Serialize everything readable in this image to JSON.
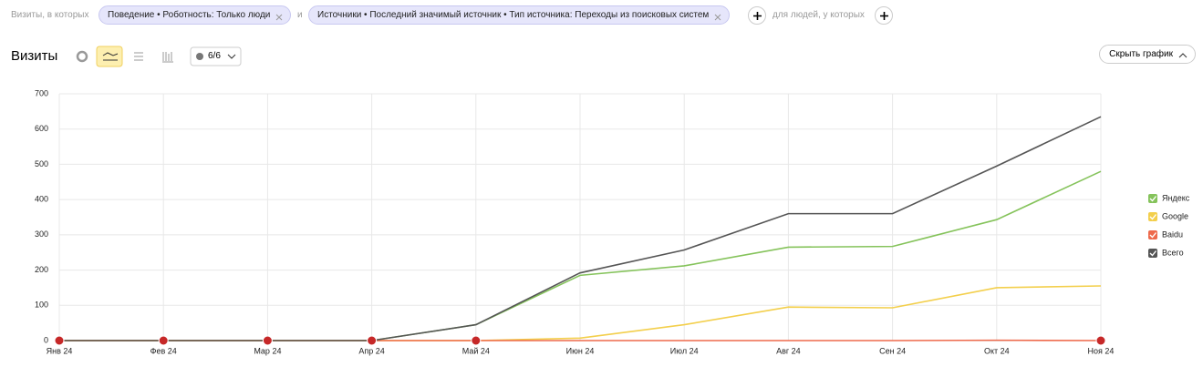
{
  "filters": {
    "prefix": "Визиты, в которых",
    "chip1": "Поведение • Роботность: Только люди",
    "joiner": "и",
    "chip2": "Источники • Последний значимый источник • Тип источника: Переходы из поисковых систем",
    "people": "для людей, у которых"
  },
  "toolbar": {
    "title": "Визиты",
    "series_count": "6/6",
    "hide_chart": "Скрыть график"
  },
  "chart_data": {
    "type": "line",
    "categories": [
      "Янв 24",
      "Фев 24",
      "Мар 24",
      "Апр 24",
      "Май 24",
      "Июн 24",
      "Июл 24",
      "Авг 24",
      "Сен 24",
      "Окт 24",
      "Ноя 24"
    ],
    "series": [
      {
        "name": "Яндекс",
        "color": "#85c35b",
        "values": [
          0,
          0,
          0,
          0,
          45,
          185,
          212,
          265,
          267,
          343,
          480
        ]
      },
      {
        "name": "Google",
        "color": "#f3cf4c",
        "values": [
          0,
          0,
          0,
          0,
          0,
          7,
          45,
          95,
          93,
          150,
          155
        ]
      },
      {
        "name": "Baidu",
        "color": "#ee6a4c",
        "values": [
          0,
          0,
          0,
          0,
          0,
          0,
          0,
          0,
          0,
          1,
          0
        ]
      },
      {
        "name": "Всего",
        "color": "#555555",
        "values": [
          0,
          0,
          0,
          0,
          45,
          192,
          257,
          360,
          360,
          495,
          635
        ]
      }
    ],
    "ylim": [
      0,
      700
    ],
    "yticks": [
      0,
      100,
      200,
      300,
      400,
      500,
      600,
      700
    ],
    "grid": true,
    "legend": "right"
  }
}
